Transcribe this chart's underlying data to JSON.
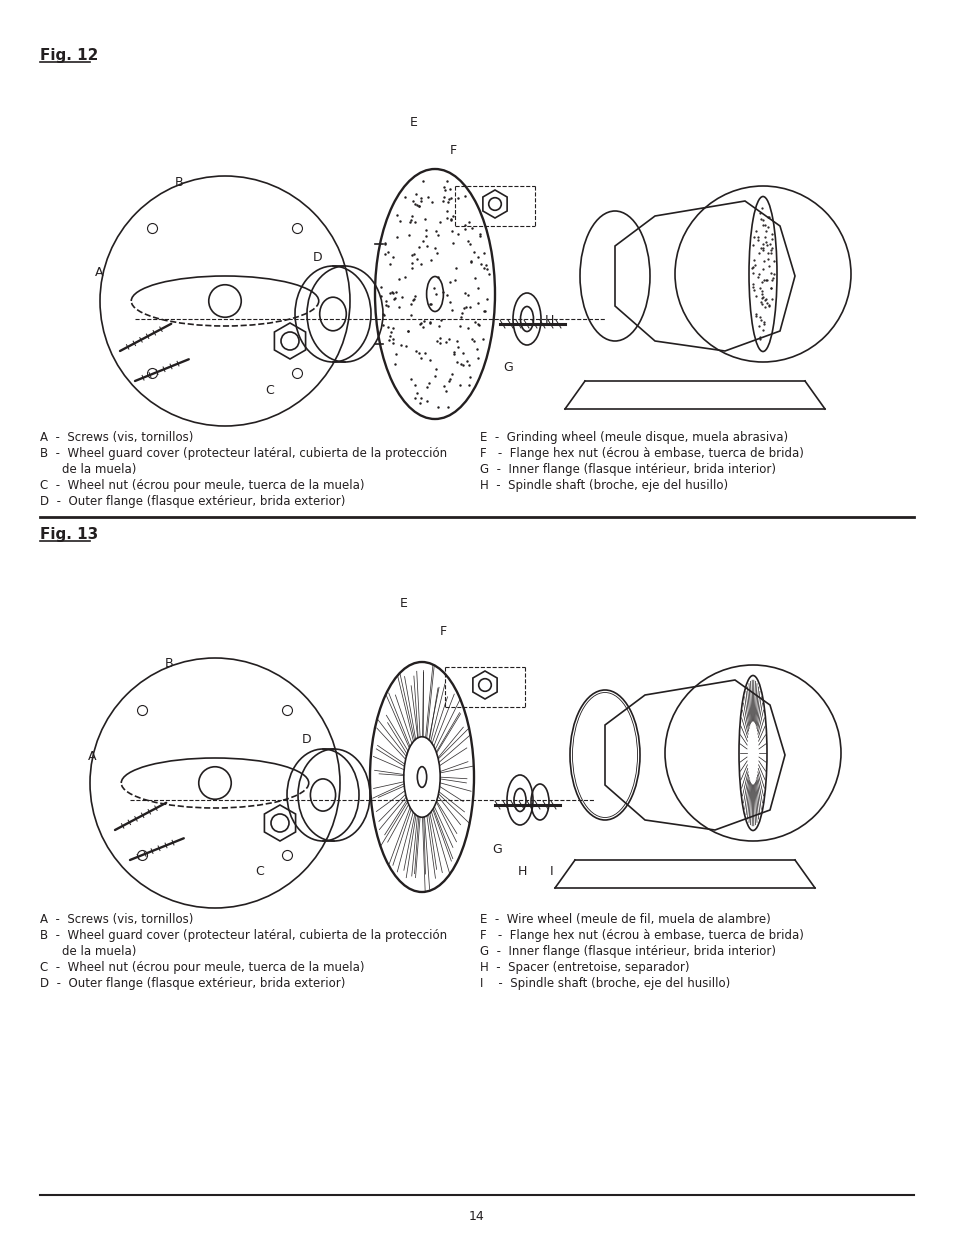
{
  "title_fig12": "Fig. 12",
  "title_fig13": "Fig. 13",
  "page_number": "14",
  "background_color": "#ffffff",
  "text_color": "#231f20",
  "title_fontsize": 11,
  "body_fontsize": 8.5,
  "fig12_left_labels": [
    [
      "A  -",
      "Screws (vis, tornillos)"
    ],
    [
      "B  -",
      "Wheel guard cover (protecteur latéral, cubierta de la protección"
    ],
    [
      "",
      "    de la muela)"
    ],
    [
      "C  -",
      "Wheel nut (écrou pour meule, tuerca de la muela)"
    ],
    [
      "D  -",
      "Outer flange (flasque extérieur, brida exterior)"
    ]
  ],
  "fig12_right_labels": [
    [
      "E  -",
      "Grinding wheel (meule disque, muela abrasiva)"
    ],
    [
      "F   -",
      "Flange hex nut (écrou à embase, tuerca de brida)"
    ],
    [
      "G  -",
      "Inner flange (flasque intérieur, brida interior)"
    ],
    [
      "H  -",
      "Spindle shaft (broche, eje del husillo)"
    ]
  ],
  "fig13_left_labels": [
    [
      "A  -",
      "Screws (vis, tornillos)"
    ],
    [
      "B  -",
      "Wheel guard cover (protecteur latéral, cubierta de la protección"
    ],
    [
      "",
      "    de la muela)"
    ],
    [
      "C  -",
      "Wheel nut (écrou pour meule, tuerca de la muela)"
    ],
    [
      "D  -",
      "Outer flange (flasque extérieur, brida exterior)"
    ]
  ],
  "fig13_right_labels": [
    [
      "E  -",
      "Wire wheel (meule de fil, muela de alambre)"
    ],
    [
      "F   -",
      "Flange hex nut (écrou à embase, tuerca de brida)"
    ],
    [
      "G  -",
      "Inner flange (flasque intérieur, brida interior)"
    ],
    [
      "H  -",
      "Spacer (entretoise, separador)"
    ],
    [
      "I    -",
      "Spindle shaft (broche, eje del husillo)"
    ]
  ],
  "line_color": "#231f20",
  "line_width": 1.5
}
